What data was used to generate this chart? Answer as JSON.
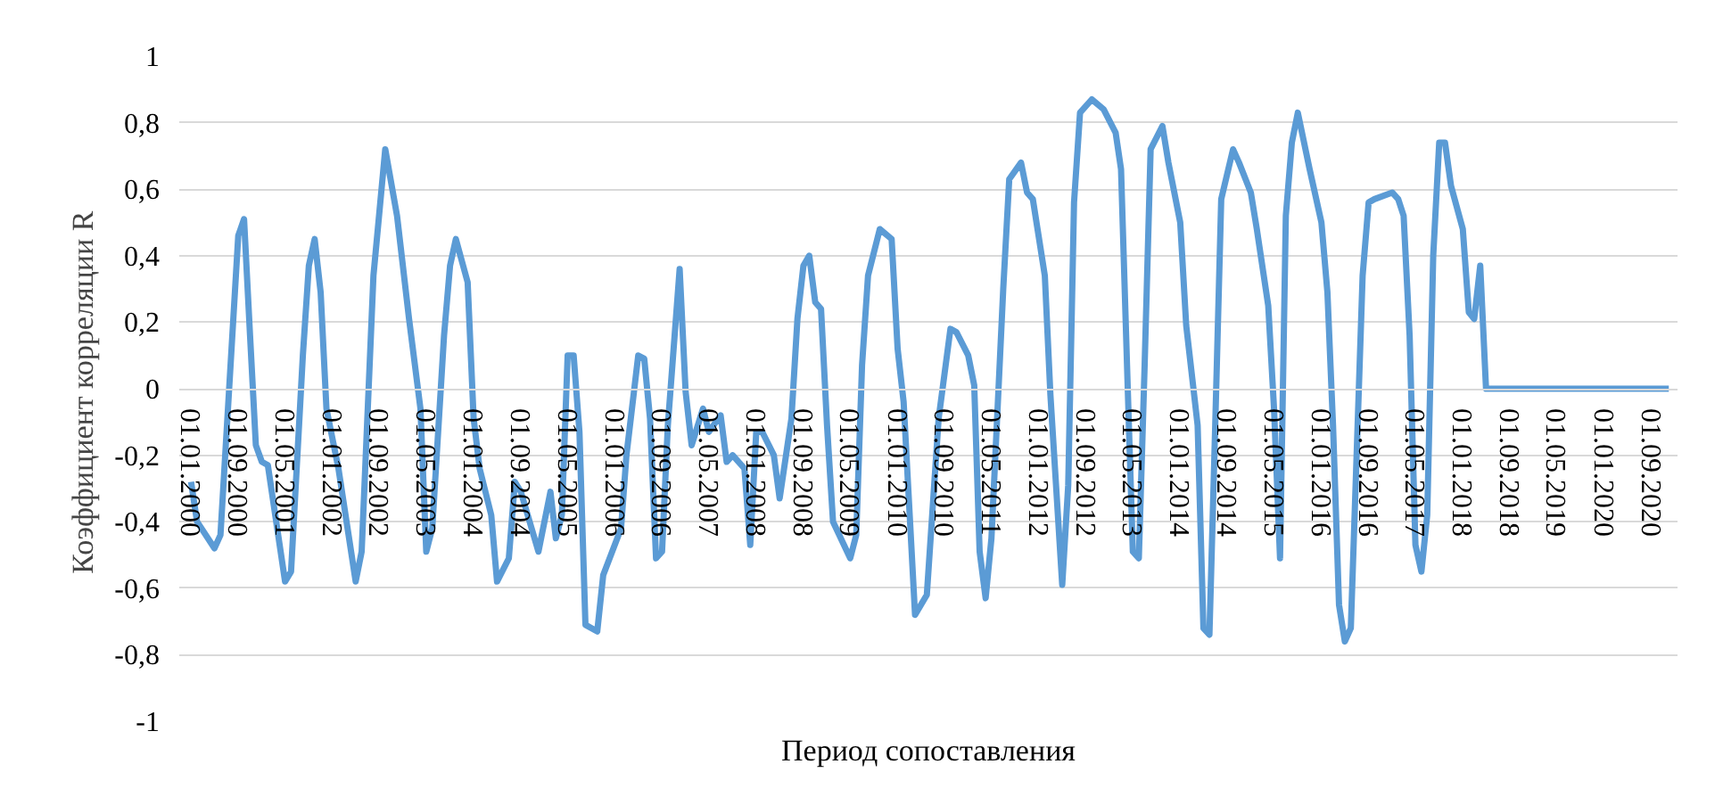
{
  "chart_data": {
    "type": "line",
    "xlabel": "Период сопоставления",
    "ylabel": "Коэффициент  корреляции R",
    "x": [
      "2000-01",
      "2000-02",
      "2000-05",
      "2000-06",
      "2000-09",
      "2000-10",
      "2000-11",
      "2000-12",
      "2001-01",
      "2001-02",
      "2001-05",
      "2001-06",
      "2001-08",
      "2001-09",
      "2001-10",
      "2001-11",
      "2001-12",
      "2002-02",
      "2002-05",
      "2002-06",
      "2002-08",
      "2002-10",
      "2002-12",
      "2003-02",
      "2003-04",
      "2003-05",
      "2003-06",
      "2003-08",
      "2003-09",
      "2003-10",
      "2003-12",
      "2004-01",
      "2004-02",
      "2004-04",
      "2004-05",
      "2004-07",
      "2004-08",
      "2004-09",
      "2004-12",
      "2005-02",
      "2005-03",
      "2005-04",
      "2005-05",
      "2005-06",
      "2005-07",
      "2005-08",
      "2005-10",
      "2005-11",
      "2006-02",
      "2006-03",
      "2006-05",
      "2006-06",
      "2006-07",
      "2006-08",
      "2006-09",
      "2006-10",
      "2006-12",
      "2007-01",
      "2007-02",
      "2007-04",
      "2007-05",
      "2007-07",
      "2007-08",
      "2007-09",
      "2007-11",
      "2007-12",
      "2008-01",
      "2008-02",
      "2008-04",
      "2008-05",
      "2008-07",
      "2008-08",
      "2008-09",
      "2008-10",
      "2008-11",
      "2008-12",
      "2009-01",
      "2009-02",
      "2009-05",
      "2009-06",
      "2009-07",
      "2009-08",
      "2009-10",
      "2009-12",
      "2010-01",
      "2010-02",
      "2010-04",
      "2010-06",
      "2010-08",
      "2010-10",
      "2010-11",
      "2011-01",
      "2011-02",
      "2011-03",
      "2011-04",
      "2011-05",
      "2011-07",
      "2011-08",
      "2011-10",
      "2011-11",
      "2011-12",
      "2012-02",
      "2012-03",
      "2012-05",
      "2012-06",
      "2012-07",
      "2012-08",
      "2012-10",
      "2012-12",
      "2013-02",
      "2013-03",
      "2013-04",
      "2013-05",
      "2013-06",
      "2013-07",
      "2013-08",
      "2013-10",
      "2013-11",
      "2014-01",
      "2014-02",
      "2014-04",
      "2014-05",
      "2014-06",
      "2014-07",
      "2014-08",
      "2014-10",
      "2014-11",
      "2015-01",
      "2015-02",
      "2015-04",
      "2015-05",
      "2015-06",
      "2015-07",
      "2015-08",
      "2015-09",
      "2015-11",
      "2016-01",
      "2016-02",
      "2016-03",
      "2016-04",
      "2016-05",
      "2016-06",
      "2016-07",
      "2016-08",
      "2016-09",
      "2016-10",
      "2017-01",
      "2017-02",
      "2017-03",
      "2017-04",
      "2017-05",
      "2017-06",
      "2017-07",
      "2017-08",
      "2017-09",
      "2017-10",
      "2017-11",
      "2018-01",
      "2018-02",
      "2018-03",
      "2018-04",
      "2018-05",
      "2020-12"
    ],
    "series": [
      {
        "color": "#5b9bd5",
        "values": [
          -0.28,
          -0.4,
          -0.48,
          -0.44,
          0.46,
          0.51,
          0.16,
          -0.17,
          -0.22,
          -0.23,
          -0.58,
          -0.55,
          0.1,
          0.37,
          0.45,
          0.29,
          -0.06,
          -0.24,
          -0.58,
          -0.49,
          0.34,
          0.72,
          0.52,
          0.21,
          -0.06,
          -0.49,
          -0.42,
          0.16,
          0.37,
          0.45,
          0.32,
          -0.09,
          -0.24,
          -0.38,
          -0.58,
          -0.51,
          -0.28,
          -0.31,
          -0.49,
          -0.31,
          -0.45,
          -0.38,
          0.1,
          0.1,
          -0.13,
          -0.71,
          -0.73,
          -0.56,
          -0.42,
          -0.2,
          0.1,
          0.09,
          -0.09,
          -0.51,
          -0.49,
          -0.11,
          0.36,
          -0.01,
          -0.17,
          -0.06,
          -0.13,
          -0.08,
          -0.22,
          -0.2,
          -0.24,
          -0.47,
          -0.13,
          -0.13,
          -0.2,
          -0.33,
          -0.09,
          0.21,
          0.37,
          0.4,
          0.26,
          0.24,
          -0.11,
          -0.4,
          -0.51,
          -0.44,
          0.07,
          0.34,
          0.48,
          0.45,
          0.12,
          -0.04,
          -0.68,
          -0.62,
          -0.09,
          0.18,
          0.17,
          0.1,
          0.01,
          -0.49,
          -0.63,
          -0.45,
          0.3,
          0.63,
          0.68,
          0.59,
          0.57,
          0.34,
          -0.02,
          -0.59,
          -0.29,
          0.56,
          0.83,
          0.87,
          0.84,
          0.77,
          0.66,
          0.07,
          -0.49,
          -0.51,
          0.07,
          0.72,
          0.79,
          0.68,
          0.5,
          0.19,
          -0.11,
          -0.72,
          -0.74,
          -0.11,
          0.57,
          0.72,
          0.68,
          0.59,
          0.48,
          0.25,
          -0.06,
          -0.51,
          0.52,
          0.74,
          0.83,
          0.66,
          0.5,
          0.29,
          -0.11,
          -0.65,
          -0.76,
          -0.72,
          -0.2,
          0.34,
          0.56,
          0.57,
          0.59,
          0.57,
          0.52,
          0.16,
          -0.47,
          -0.55,
          -0.38,
          0.4,
          0.74,
          0.74,
          0.61,
          0.48,
          0.23,
          0.21,
          0.37,
          0,
          0
        ]
      }
    ],
    "xlim": [
      "1999-11-01",
      "2021-01-15"
    ],
    "xticks": [
      {
        "value": "2000-01-01",
        "label": "01.01.2000"
      },
      {
        "value": "2000-09-01",
        "label": "01.09.2000"
      },
      {
        "value": "2001-05-01",
        "label": "01.05.2001"
      },
      {
        "value": "2002-01-01",
        "label": "01.01.2002"
      },
      {
        "value": "2002-09-01",
        "label": "01.09.2002"
      },
      {
        "value": "2003-05-01",
        "label": "01.05.2003"
      },
      {
        "value": "2004-01-01",
        "label": "01.01.2004"
      },
      {
        "value": "2004-09-01",
        "label": "01.09.2004"
      },
      {
        "value": "2005-05-01",
        "label": "01.05.2005"
      },
      {
        "value": "2006-01-01",
        "label": "01.01.2006"
      },
      {
        "value": "2006-09-01",
        "label": "01.09.2006"
      },
      {
        "value": "2007-05-01",
        "label": "01.05.2007"
      },
      {
        "value": "2008-01-01",
        "label": "01.01.2008"
      },
      {
        "value": "2008-09-01",
        "label": "01.09.2008"
      },
      {
        "value": "2009-05-01",
        "label": "01.05.2009"
      },
      {
        "value": "2010-01-01",
        "label": "01.01.2010"
      },
      {
        "value": "2010-09-01",
        "label": "01.09.2010"
      },
      {
        "value": "2011-05-01",
        "label": "01.05.2011"
      },
      {
        "value": "2012-01-01",
        "label": "01.01.2012"
      },
      {
        "value": "2012-09-01",
        "label": "01.09.2012"
      },
      {
        "value": "2013-05-01",
        "label": "01.05.2013"
      },
      {
        "value": "2014-01-01",
        "label": "01.01.2014"
      },
      {
        "value": "2014-09-01",
        "label": "01.09.2014"
      },
      {
        "value": "2015-05-01",
        "label": "01.05.2015"
      },
      {
        "value": "2016-01-01",
        "label": "01.01.2016"
      },
      {
        "value": "2016-09-01",
        "label": "01.09.2016"
      },
      {
        "value": "2017-05-01",
        "label": "01.05.2017"
      },
      {
        "value": "2018-01-01",
        "label": "01.01.2018"
      },
      {
        "value": "2018-09-01",
        "label": "01.09.2018"
      },
      {
        "value": "2019-05-01",
        "label": "01.05.2019"
      },
      {
        "value": "2020-01-01",
        "label": "01.01.2020"
      },
      {
        "value": "2020-09-01",
        "label": "01.09.2020"
      }
    ],
    "ylim": [
      -1,
      1
    ],
    "yticks": [
      {
        "value": -1,
        "label": "-1"
      },
      {
        "value": -0.8,
        "label": "-0,8"
      },
      {
        "value": -0.6,
        "label": "-0,6"
      },
      {
        "value": -0.4,
        "label": "-0,4"
      },
      {
        "value": -0.2,
        "label": "-0,2"
      },
      {
        "value": 0,
        "label": "0"
      },
      {
        "value": 0.2,
        "label": "0,2"
      },
      {
        "value": 0.4,
        "label": "0,4"
      },
      {
        "value": 0.6,
        "label": "0,6"
      },
      {
        "value": 0.8,
        "label": "0,8"
      },
      {
        "value": 1,
        "label": "1"
      }
    ],
    "grid": "y",
    "marker": "none",
    "line_style": "solid"
  }
}
